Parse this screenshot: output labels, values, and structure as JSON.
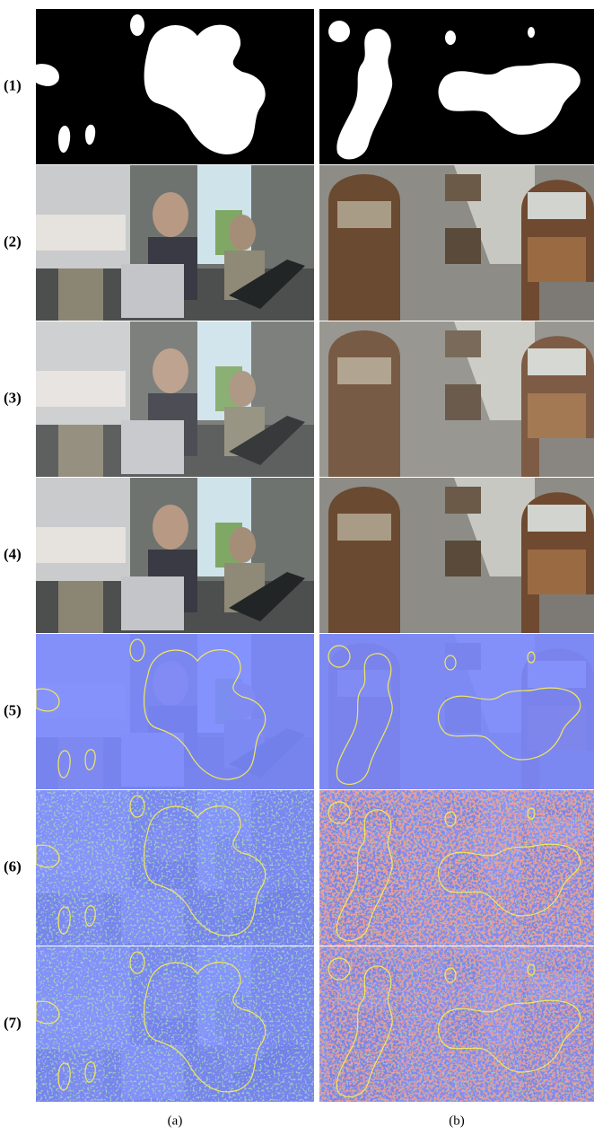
{
  "row_labels": [
    "(1)",
    "(2)",
    "(3)",
    "(4)",
    "(5)",
    "(6)",
    "(7)"
  ],
  "column_labels": [
    "(a)",
    "(b)"
  ]
}
